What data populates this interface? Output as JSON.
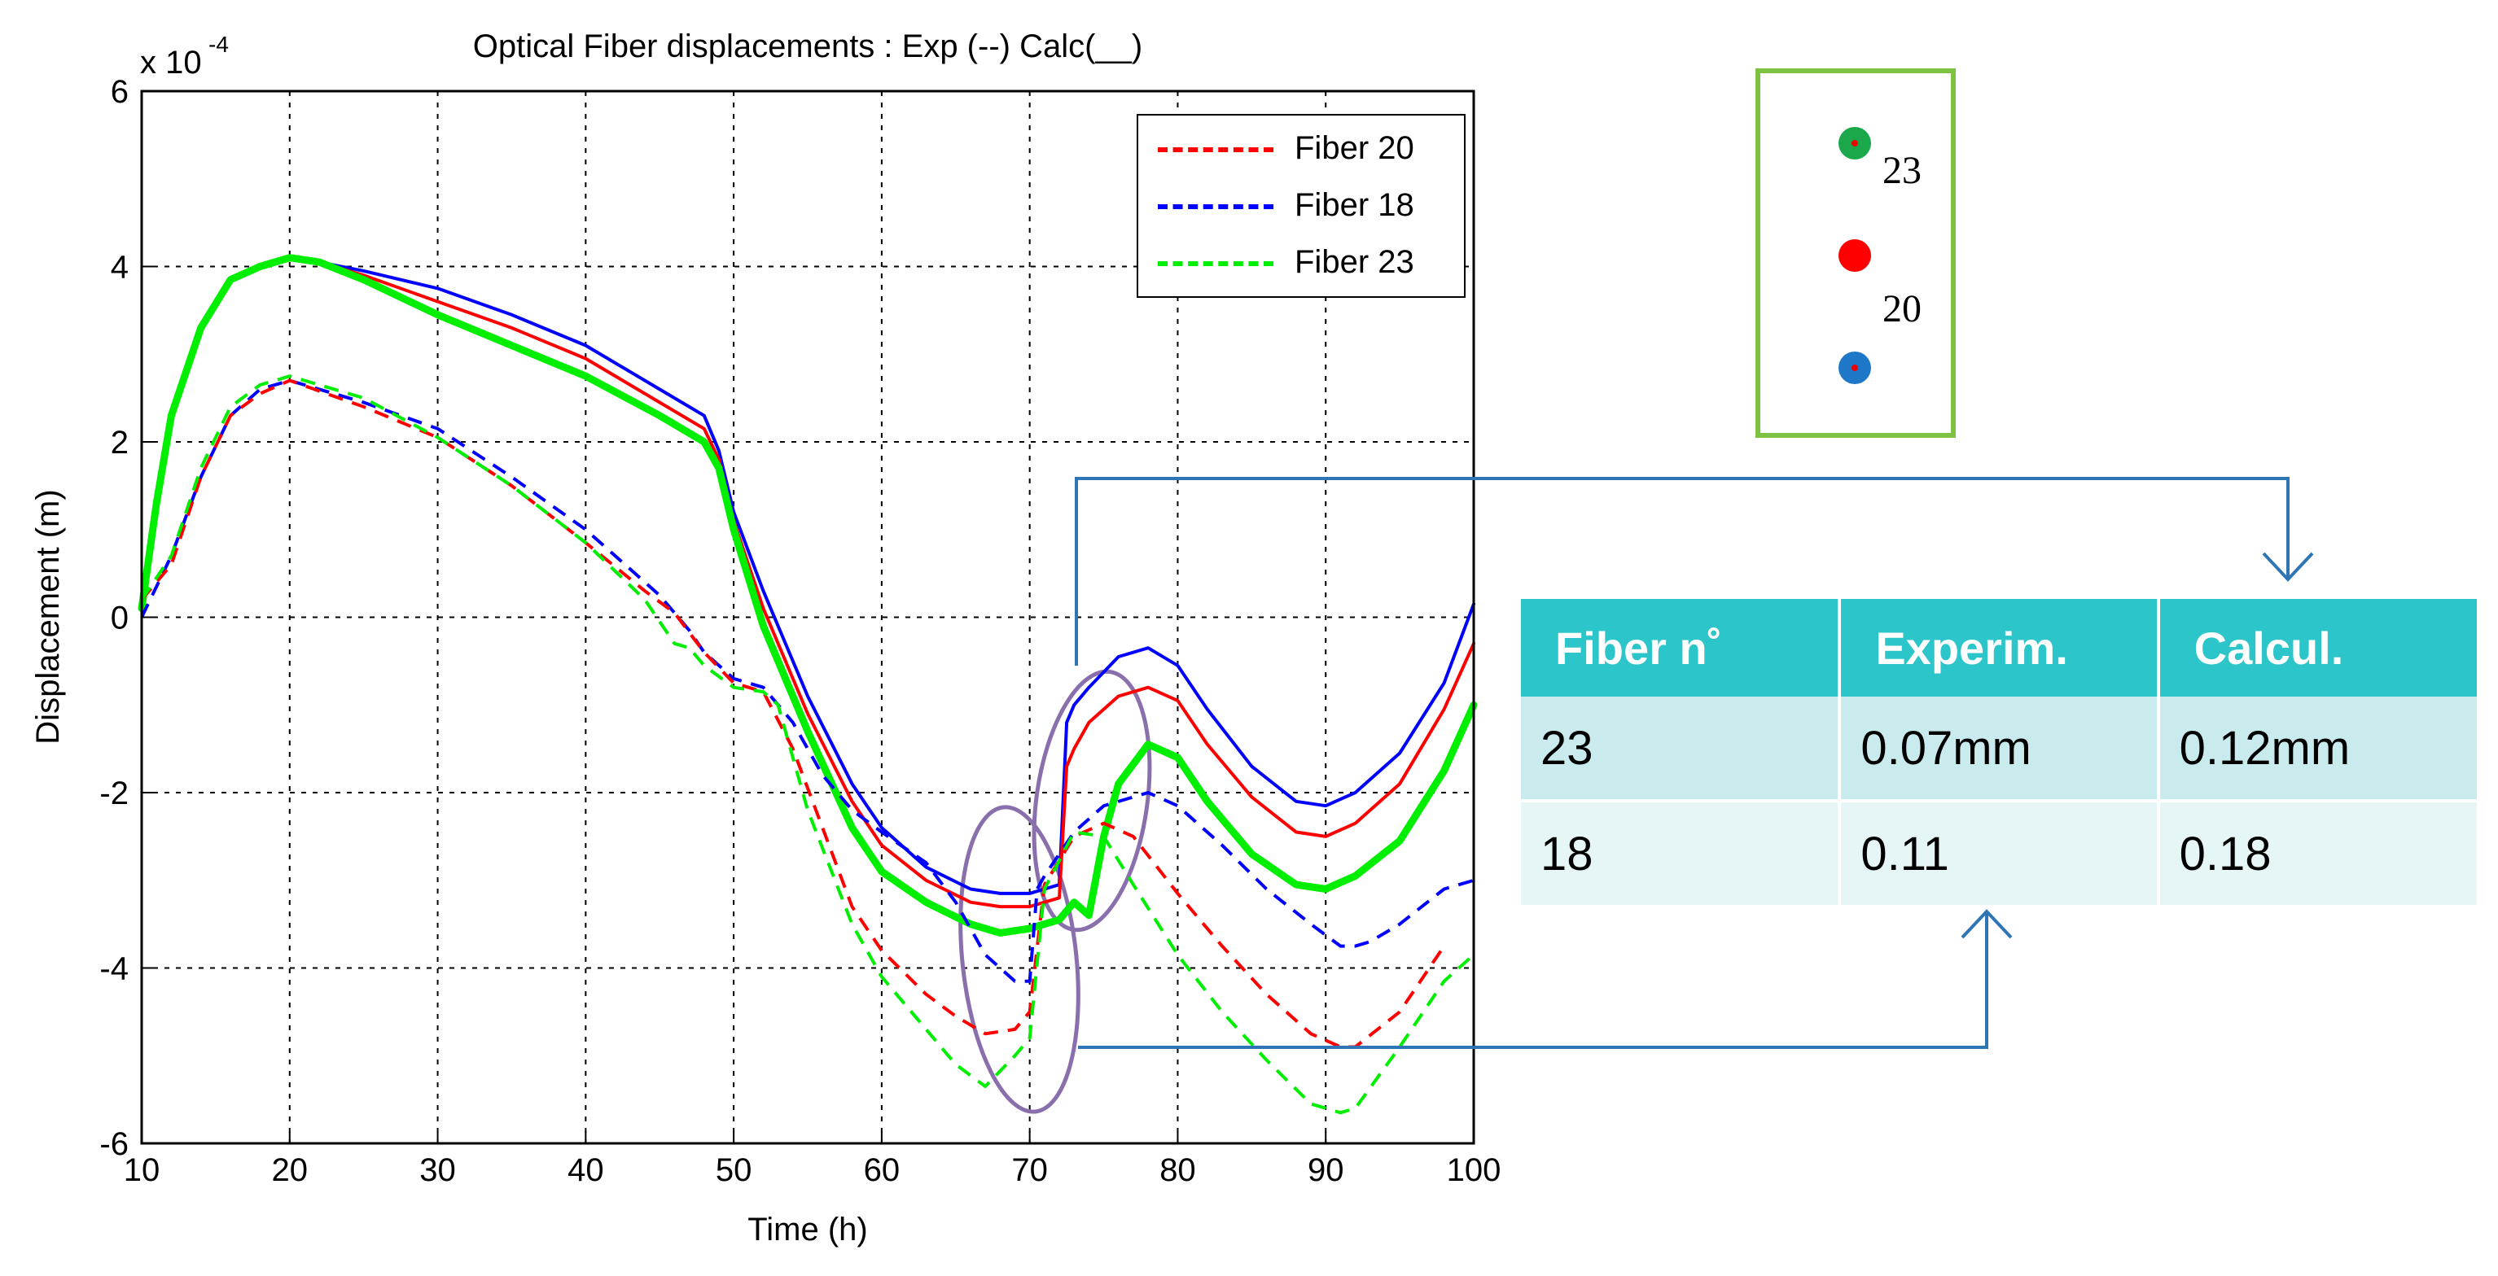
{
  "chart_data": {
    "type": "line",
    "title": "Optical Fiber displacements : Exp (--) Calc(__)",
    "xlabel": "Time (h)",
    "ylabel": "Displacement (m)",
    "y_exponent_label": "x 10",
    "y_exponent_power": "-4",
    "xlim": [
      10,
      100
    ],
    "ylim": [
      -6,
      6
    ],
    "grid": true,
    "x_ticks": [
      10,
      20,
      30,
      40,
      50,
      60,
      70,
      80,
      90,
      100
    ],
    "y_ticks": [
      -6,
      -4,
      -2,
      0,
      2,
      4,
      6
    ],
    "legend_position": "top-right",
    "legend": [
      {
        "label": "Fiber 20",
        "color": "#ff0000"
      },
      {
        "label": "Fiber 18",
        "color": "#0000ff"
      },
      {
        "label": "Fiber 23",
        "color": "#00ee00"
      }
    ],
    "series": [
      {
        "name": "Fiber 18 Calc",
        "style": "solid",
        "color": "#0000ff",
        "width": 4,
        "x": [
          10,
          11,
          12,
          14,
          16,
          18,
          20,
          22,
          25,
          30,
          35,
          40,
          45,
          48,
          49,
          50,
          52,
          55,
          58,
          60,
          63,
          66,
          68,
          70,
          71,
          72,
          72.5,
          73,
          74,
          76,
          78,
          80,
          82,
          85,
          88,
          90,
          92,
          95,
          98,
          100
        ],
        "y": [
          0.1,
          1.3,
          2.3,
          3.3,
          3.85,
          4.0,
          4.1,
          4.05,
          3.95,
          3.75,
          3.45,
          3.1,
          2.6,
          2.3,
          1.9,
          1.2,
          0.3,
          -0.9,
          -1.9,
          -2.4,
          -2.85,
          -3.1,
          -3.15,
          -3.15,
          -3.1,
          -3.05,
          -1.2,
          -1.0,
          -0.8,
          -0.45,
          -0.35,
          -0.55,
          -1.05,
          -1.7,
          -2.1,
          -2.15,
          -2.0,
          -1.55,
          -0.75,
          0.15
        ]
      },
      {
        "name": "Fiber 20 Calc",
        "style": "solid",
        "color": "#ff0000",
        "width": 4,
        "x": [
          10,
          11,
          12,
          14,
          16,
          18,
          20,
          22,
          25,
          30,
          35,
          40,
          45,
          48,
          49,
          50,
          52,
          55,
          58,
          60,
          63,
          66,
          68,
          70,
          71,
          72,
          72.5,
          73,
          74,
          76,
          78,
          80,
          82,
          85,
          88,
          90,
          92,
          95,
          98,
          100
        ],
        "y": [
          0.1,
          1.3,
          2.3,
          3.3,
          3.85,
          4.0,
          4.1,
          4.05,
          3.9,
          3.6,
          3.3,
          2.95,
          2.45,
          2.15,
          1.8,
          1.1,
          0.1,
          -1.1,
          -2.1,
          -2.6,
          -3.0,
          -3.25,
          -3.3,
          -3.3,
          -3.25,
          -3.2,
          -1.7,
          -1.5,
          -1.2,
          -0.9,
          -0.8,
          -0.95,
          -1.45,
          -2.05,
          -2.45,
          -2.5,
          -2.35,
          -1.9,
          -1.05,
          -0.3
        ]
      },
      {
        "name": "Fiber 23 Calc",
        "style": "solid",
        "color": "#00ee00",
        "width": 9,
        "x": [
          10,
          11,
          12,
          14,
          16,
          18,
          20,
          22,
          25,
          30,
          35,
          40,
          45,
          48,
          49,
          50,
          52,
          55,
          58,
          60,
          63,
          66,
          68,
          70,
          71,
          72,
          73,
          74,
          75,
          76,
          78,
          80,
          82,
          85,
          88,
          90,
          92,
          95,
          98,
          100
        ],
        "y": [
          0.1,
          1.3,
          2.3,
          3.3,
          3.85,
          4.0,
          4.1,
          4.05,
          3.85,
          3.45,
          3.1,
          2.75,
          2.3,
          2.0,
          1.7,
          1.0,
          -0.1,
          -1.3,
          -2.4,
          -2.9,
          -3.25,
          -3.5,
          -3.6,
          -3.55,
          -3.5,
          -3.45,
          -3.25,
          -3.4,
          -2.5,
          -1.9,
          -1.45,
          -1.6,
          -2.1,
          -2.7,
          -3.05,
          -3.1,
          -2.95,
          -2.55,
          -1.75,
          -1.0
        ]
      },
      {
        "name": "Fiber 18 Exp",
        "style": "dashed",
        "color": "#0000ff",
        "width": 4,
        "x": [
          10,
          12,
          14,
          16,
          18,
          20,
          25,
          30,
          35,
          40,
          45,
          47,
          48,
          50,
          52,
          54,
          56,
          58,
          60,
          63,
          65,
          67,
          69,
          70,
          70.5,
          71,
          73,
          75,
          77,
          78,
          80,
          83,
          86,
          89,
          91,
          92,
          93,
          95,
          98,
          100
        ],
        "y": [
          0.0,
          0.7,
          1.6,
          2.3,
          2.6,
          2.7,
          2.45,
          2.15,
          1.6,
          1.0,
          0.25,
          -0.15,
          -0.4,
          -0.7,
          -0.8,
          -1.2,
          -1.8,
          -2.2,
          -2.45,
          -2.8,
          -3.25,
          -3.85,
          -4.15,
          -4.15,
          -3.1,
          -2.95,
          -2.45,
          -2.15,
          -2.05,
          -2.0,
          -2.15,
          -2.6,
          -3.1,
          -3.5,
          -3.75,
          -3.75,
          -3.7,
          -3.5,
          -3.1,
          -3.0
        ]
      },
      {
        "name": "Fiber 20 Exp",
        "style": "dashed",
        "color": "#ff0000",
        "width": 4,
        "x": [
          10,
          12,
          14,
          16,
          18,
          20,
          25,
          30,
          35,
          40,
          44,
          46,
          48,
          50,
          52,
          54,
          56,
          58,
          60,
          63,
          65,
          67,
          69,
          70,
          71,
          73,
          75,
          77,
          80,
          83,
          86,
          89,
          91,
          92,
          95,
          98
        ],
        "y": [
          0.2,
          0.6,
          1.6,
          2.3,
          2.55,
          2.7,
          2.4,
          2.05,
          1.5,
          0.85,
          0.3,
          0.05,
          -0.4,
          -0.75,
          -0.85,
          -1.5,
          -2.4,
          -3.3,
          -3.8,
          -4.3,
          -4.55,
          -4.75,
          -4.7,
          -4.5,
          -3.05,
          -2.5,
          -2.35,
          -2.5,
          -3.15,
          -3.75,
          -4.3,
          -4.75,
          -4.9,
          -4.9,
          -4.5,
          -3.75
        ]
      },
      {
        "name": "Fiber 23 Exp",
        "style": "dashed",
        "color": "#00ee00",
        "width": 4,
        "x": [
          10,
          12,
          14,
          16,
          18,
          20,
          25,
          30,
          35,
          40,
          44,
          46,
          47,
          48,
          50,
          52,
          53,
          55,
          58,
          60,
          63,
          65,
          67,
          69,
          70,
          71,
          73,
          75,
          77,
          80,
          83,
          86,
          89,
          91,
          92,
          95,
          98,
          100
        ],
        "y": [
          0.2,
          0.7,
          1.7,
          2.4,
          2.65,
          2.75,
          2.5,
          2.05,
          1.5,
          0.85,
          0.2,
          -0.3,
          -0.35,
          -0.55,
          -0.8,
          -0.85,
          -1.0,
          -2.2,
          -3.5,
          -4.1,
          -4.7,
          -5.1,
          -5.35,
          -5.0,
          -4.8,
          -3.1,
          -2.45,
          -2.5,
          -3.05,
          -3.85,
          -4.5,
          -5.05,
          -5.55,
          -5.65,
          -5.6,
          -4.9,
          -4.15,
          -3.85
        ]
      }
    ],
    "annotations": [
      {
        "shape": "ellipse",
        "cx": 69.2,
        "cy": -3.95,
        "color": "#8a6fad"
      },
      {
        "shape": "ellipse",
        "cx": 73.4,
        "cy": -2.4,
        "color": "#8a6fad"
      }
    ]
  },
  "schematic": {
    "border_color": "#7dc242",
    "dots": [
      {
        "fiber": "23",
        "outer_color": "#1aa84a",
        "core_color": "#e00000"
      },
      {
        "fiber": "",
        "outer_color": "#ff0000",
        "core_color": "#ff0000"
      },
      {
        "fiber": "18",
        "outer_color": "#1f77c8",
        "core_color": "#e00000"
      }
    ],
    "labels": [
      "23",
      "20"
    ]
  },
  "connector_color": "#2e75b6",
  "table": {
    "headers": [
      "Fiber n˚",
      "Experim.",
      "Calcul."
    ],
    "rows": [
      [
        "23",
        "0.07mm",
        "0.12mm"
      ],
      [
        "18",
        "0.11",
        "0.18"
      ]
    ]
  }
}
